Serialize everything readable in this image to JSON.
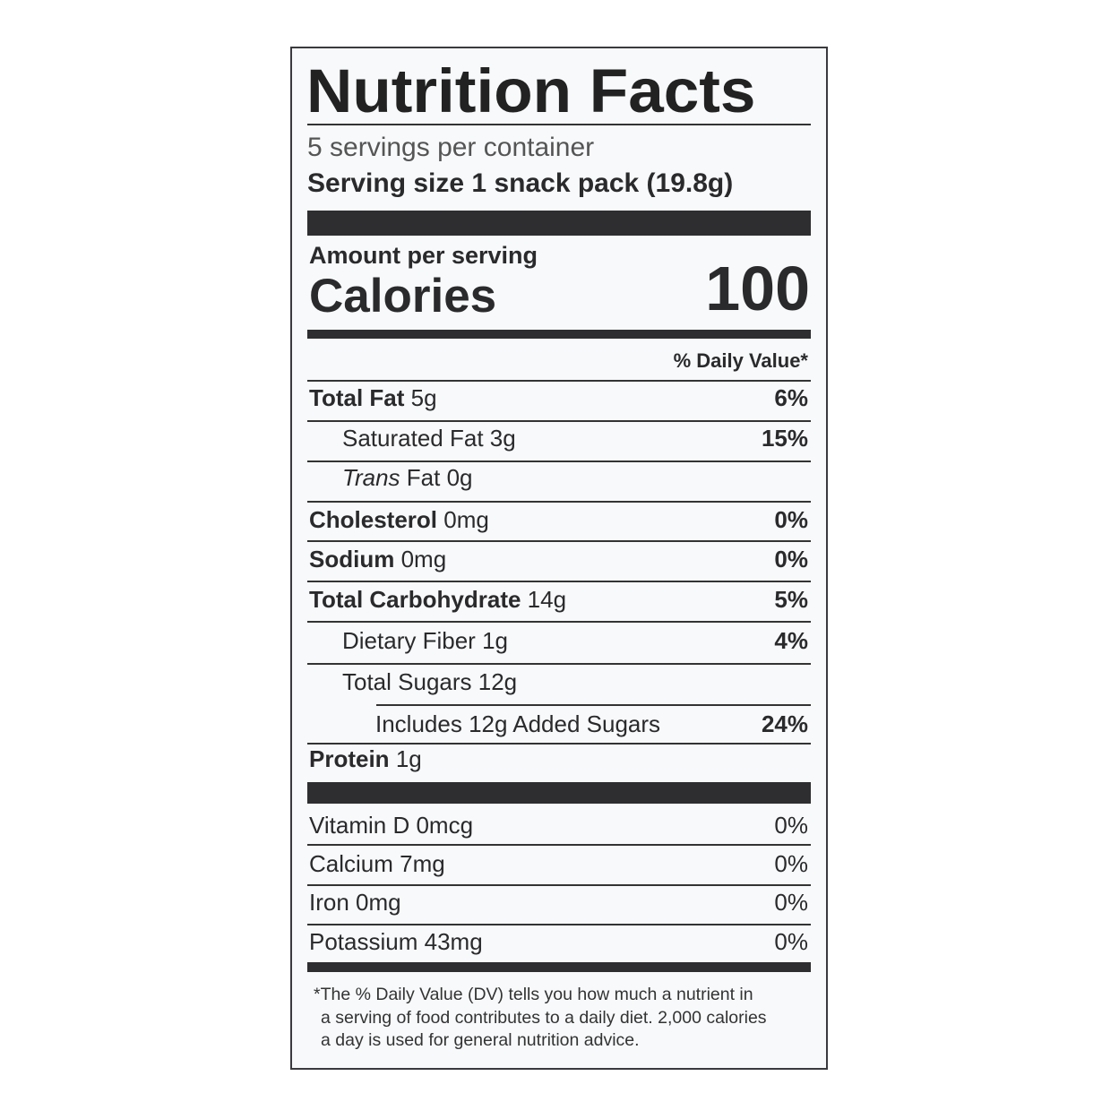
{
  "title": "Nutrition Facts",
  "servings_per_container": "5 servings per container",
  "serving_size_label": "Serving size",
  "serving_size_value": "1 snack pack (19.8g)",
  "amount_per_serving": "Amount per serving",
  "calories_label": "Calories",
  "calories_value": "100",
  "daily_value_header": "% Daily Value*",
  "nutrients": [
    {
      "name": "Total Fat",
      "amount": "5g",
      "dv": "6%"
    },
    {
      "name": "Saturated Fat",
      "amount": "3g",
      "dv": "15%"
    },
    {
      "name_italic": "Trans",
      "name": "Fat",
      "amount": "0g",
      "dv": ""
    },
    {
      "name": "Cholesterol",
      "amount": "0mg",
      "dv": "0%"
    },
    {
      "name": "Sodium",
      "amount": "0mg",
      "dv": "0%"
    },
    {
      "name": "Total Carbohydrate",
      "amount": "14g",
      "dv": "5%"
    },
    {
      "name": "Dietary Fiber",
      "amount": "1g",
      "dv": "4%"
    },
    {
      "name": "Total Sugars",
      "amount": "12g",
      "dv": ""
    },
    {
      "name": "Includes 12g Added Sugars",
      "amount": "",
      "dv": "24%"
    },
    {
      "name": "Protein",
      "amount": "1g",
      "dv": ""
    }
  ],
  "vitamins": [
    {
      "name": "Vitamin D",
      "amount": "0mcg",
      "dv": "0%"
    },
    {
      "name": "Calcium",
      "amount": "7mg",
      "dv": "0%"
    },
    {
      "name": "Iron",
      "amount": "0mg",
      "dv": "0%"
    },
    {
      "name": "Potassium",
      "amount": "43mg",
      "dv": "0%"
    }
  ],
  "footnote": [
    "*The % Daily Value (DV) tells you how much a nutrient in",
    "a serving of food contributes to a daily diet. 2,000 calories",
    "a day is used for general nutrition advice."
  ]
}
